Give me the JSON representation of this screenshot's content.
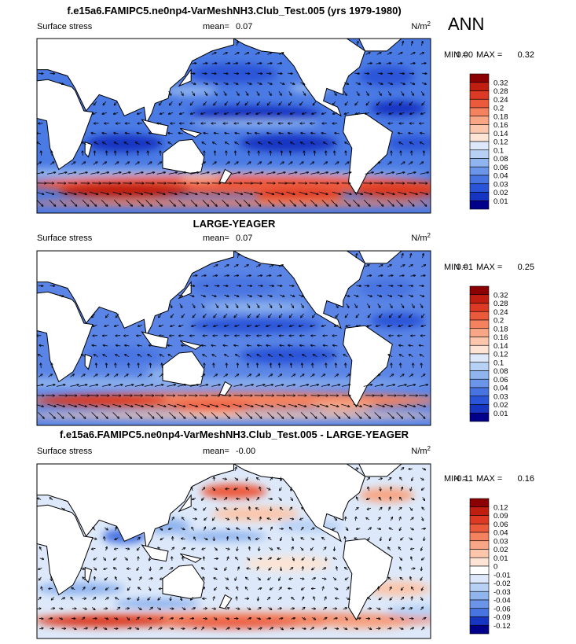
{
  "figure": {
    "season": "ANN"
  },
  "panels": [
    {
      "title": "f.e15a6.FAMIPC5.ne0np4-VarMeshNH3.Club_Test.005 (yrs 1979-1980)",
      "variable": "Surface stress",
      "mean_label": "mean=",
      "mean": "0.07",
      "units": {
        "base": "N/m",
        "exp": "2"
      },
      "stats": {
        "min_label": "MIN =",
        "min": "0.00",
        "max_label": "MAX =",
        "max": "0.32"
      },
      "colorbar": {
        "labels": [
          "0.32",
          "0.28",
          "0.24",
          "0.2",
          "0.18",
          "0.16",
          "0.14",
          "0.12",
          "0.1",
          "0.08",
          "0.06",
          "0.04",
          "0.03",
          "0.02",
          "0.01"
        ],
        "colors": [
          "#8b0000",
          "#c01e10",
          "#dc3a24",
          "#ec5a3c",
          "#f4825f",
          "#f8a685",
          "#fbc6ac",
          "#fde4d4",
          "#dde9fa",
          "#b7d1f5",
          "#90b4ee",
          "#6b95e8",
          "#4874e2",
          "#2b55d8",
          "#1636c2",
          "#00008a"
        ]
      }
    },
    {
      "title": "LARGE-YEAGER",
      "variable": "Surface stress",
      "mean_label": "mean=",
      "mean": "0.07",
      "units": {
        "base": "N/m",
        "exp": "2"
      },
      "stats": {
        "min_label": "MIN =",
        "min": "0.01",
        "max_label": "MAX =",
        "max": "0.25"
      },
      "colorbar": {
        "labels": [
          "0.32",
          "0.28",
          "0.24",
          "0.2",
          "0.18",
          "0.16",
          "0.14",
          "0.12",
          "0.1",
          "0.08",
          "0.06",
          "0.04",
          "0.03",
          "0.02",
          "0.01"
        ],
        "colors": [
          "#8b0000",
          "#c01e10",
          "#dc3a24",
          "#ec5a3c",
          "#f4825f",
          "#f8a685",
          "#fbc6ac",
          "#fde4d4",
          "#dde9fa",
          "#b7d1f5",
          "#90b4ee",
          "#6b95e8",
          "#4874e2",
          "#2b55d8",
          "#1636c2",
          "#00008a"
        ]
      }
    },
    {
      "title": "f.e15a6.FAMIPC5.ne0np4-VarMeshNH3.Club_Test.005 - LARGE-YEAGER",
      "variable": "Surface stress",
      "mean_label": "mean=",
      "mean": "-0.00",
      "units": {
        "base": "N/m",
        "exp": "2"
      },
      "stats": {
        "min_label": "MIN =",
        "min": "-0.11",
        "max_label": "MAX =",
        "max": "0.16"
      },
      "colorbar": {
        "labels": [
          "0.12",
          "0.09",
          "0.06",
          "0.04",
          "0.03",
          "0.02",
          "0.01",
          "0",
          "-0.01",
          "-0.02",
          "-0.03",
          "-0.04",
          "-0.06",
          "-0.09",
          "-0.12"
        ],
        "colors": [
          "#8b0000",
          "#c01e10",
          "#dc3a24",
          "#ec5a3c",
          "#f4825f",
          "#f8a685",
          "#fbc6ac",
          "#fde4d4",
          "#ffffff",
          "#dde9fa",
          "#b7d1f5",
          "#90b4ee",
          "#6b95e8",
          "#4874e2",
          "#1636c2",
          "#00008a"
        ]
      }
    }
  ]
}
